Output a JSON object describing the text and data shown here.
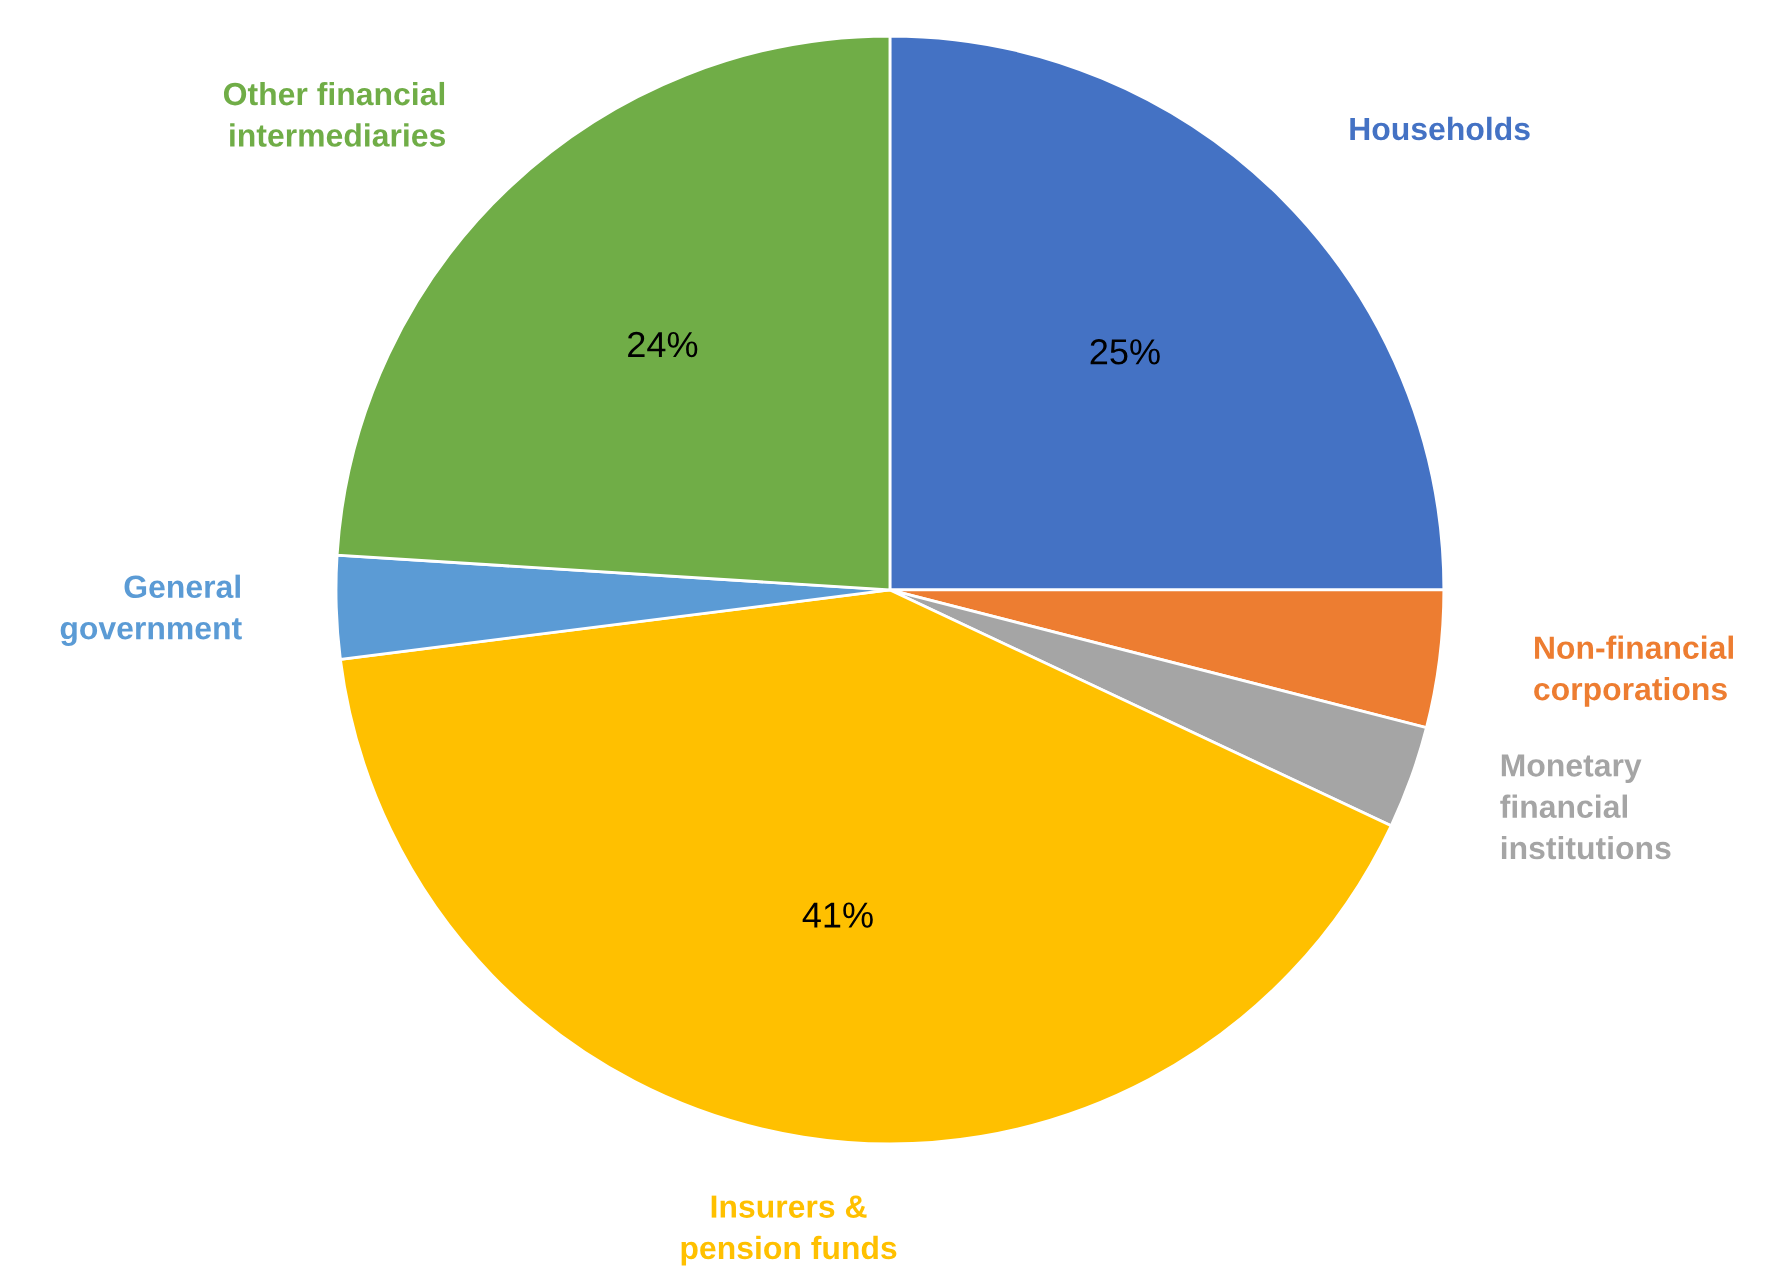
{
  "chart_data": {
    "type": "pie",
    "categories": [
      "Households",
      "Non-financial corporations",
      "Monetary financial institutions",
      "Insurers & pension funds",
      "General government",
      "Other financial intermediaries"
    ],
    "values": [
      25,
      4,
      3,
      41,
      3,
      24
    ],
    "colors": [
      "#4472c4",
      "#ed7d31",
      "#a5a5a5",
      "#ffc000",
      "#5b9bd5",
      "#70ad47"
    ],
    "value_labels": [
      "25%",
      null,
      null,
      "41%",
      null,
      "24%"
    ]
  }
}
